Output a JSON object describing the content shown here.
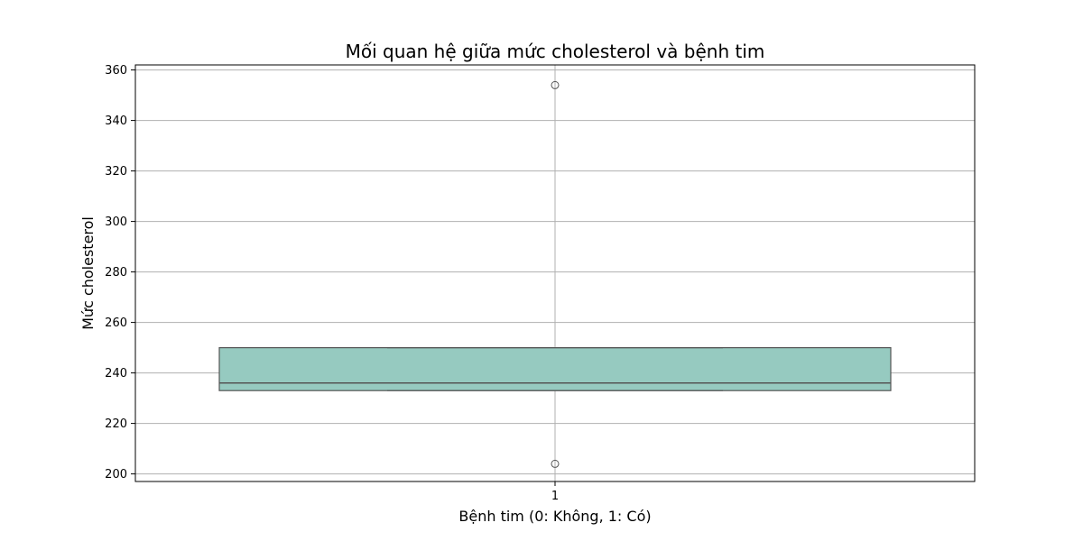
{
  "chart_data": {
    "type": "box",
    "title": "Mối quan hệ giữa mức cholesterol và bệnh tim",
    "xlabel": "Bệnh tim (0: Không, 1: Có)",
    "ylabel": "Mức cholesterol",
    "categories": [
      "1"
    ],
    "ylim": [
      197,
      362
    ],
    "yticks": [
      200,
      220,
      240,
      260,
      280,
      300,
      320,
      340,
      360
    ],
    "grid": true,
    "boxes": [
      {
        "category": "1",
        "q1": 233,
        "median": 236,
        "q3": 250,
        "whisker_low": 233,
        "whisker_high": 250,
        "outliers": [
          204,
          354
        ]
      }
    ],
    "colors": {
      "box_fill": "#96cac0",
      "box_edge": "#555555",
      "grid": "#b0b0b0"
    }
  }
}
